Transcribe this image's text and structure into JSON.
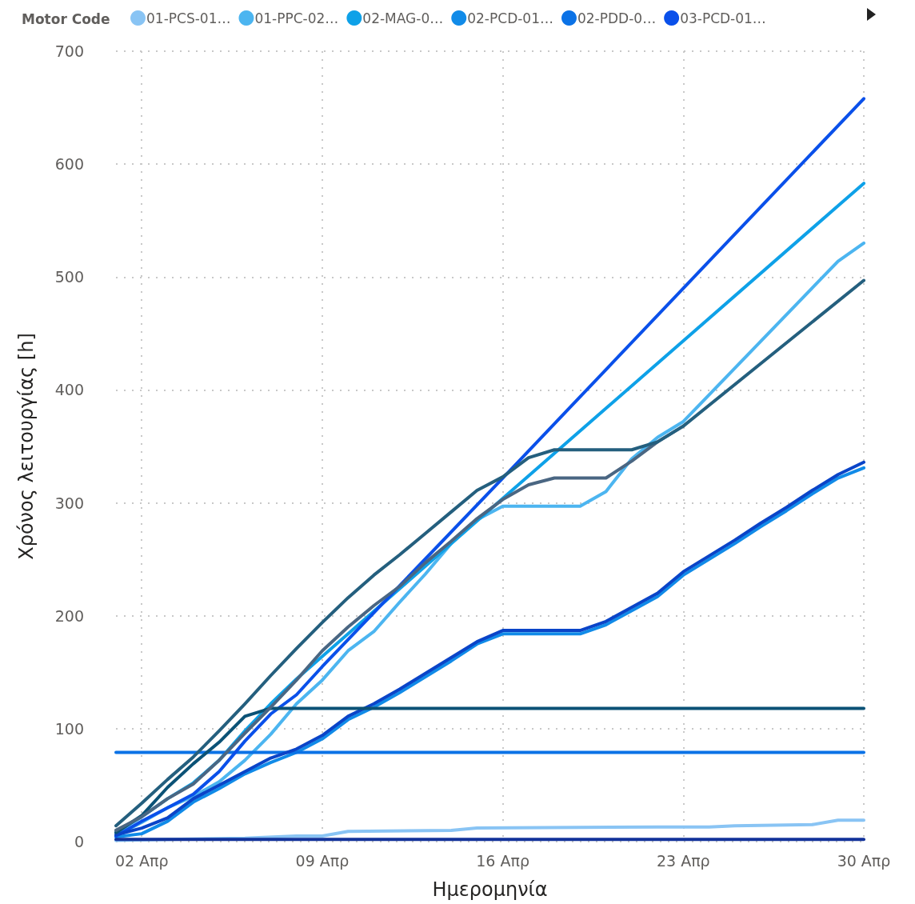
{
  "chart_data": {
    "type": "line",
    "legend_title": "Motor Code",
    "xlabel": "Ημερομηνία",
    "ylabel": "Χρόνος λειτουργίας [h]",
    "xlim": [
      "--04-01",
      "--04-30"
    ],
    "xticks": [
      {
        "value": "--04-02",
        "label": "02 Απρ"
      },
      {
        "value": "--04-09",
        "label": "09 Απρ"
      },
      {
        "value": "--04-16",
        "label": "16 Απρ"
      },
      {
        "value": "--04-23",
        "label": "23 Απρ"
      },
      {
        "value": "--04-30",
        "label": "30 Απρ"
      }
    ],
    "ylim": [
      0,
      700
    ],
    "yticks": [
      0,
      100,
      200,
      300,
      400,
      500,
      600,
      700
    ],
    "grid": true,
    "legend": "top",
    "marker": "none",
    "line_style": "solid",
    "series": [
      {
        "name": "01-PCS-01…",
        "color": "#89c4f4",
        "x": [
          "--04-01",
          "--04-03",
          "--04-06",
          "--04-08",
          "--04-09",
          "--04-10",
          "--04-14",
          "--04-15",
          "--04-22",
          "--04-24",
          "--04-25",
          "--04-28",
          "--04-29",
          "--04-30"
        ],
        "values": [
          1,
          2,
          3,
          5,
          5,
          9,
          10,
          12,
          13,
          13,
          14,
          15,
          19,
          19
        ]
      },
      {
        "name": "01-PPC-02…",
        "color": "#4cb5f0",
        "x": [
          "--04-01",
          "--04-02",
          "--04-03",
          "--04-04",
          "--04-05",
          "--04-06",
          "--04-07",
          "--04-08",
          "--04-09",
          "--04-10",
          "--04-11",
          "--04-12",
          "--04-13",
          "--04-14",
          "--04-15",
          "--04-16",
          "--04-19",
          "--04-20",
          "--04-21",
          "--04-22",
          "--04-23",
          "--04-29",
          "--04-30"
        ],
        "values": [
          5,
          17,
          30,
          40,
          53,
          72,
          95,
          122,
          143,
          169,
          186,
          212,
          237,
          264,
          285,
          297,
          297,
          310,
          339,
          358,
          372,
          514,
          530
        ]
      },
      {
        "name": "02-MAG-0…",
        "color": "#0ea1e8",
        "x": [
          "--04-01",
          "--04-02",
          "--04-03",
          "--04-04",
          "--04-05",
          "--04-06",
          "--04-07",
          "--04-08",
          "--04-09",
          "--04-16",
          "--04-30"
        ],
        "values": [
          8,
          22,
          38,
          52,
          72,
          98,
          122,
          144,
          164,
          304,
          583
        ]
      },
      {
        "name": "02-PCD-01…",
        "color": "#118be8",
        "x": [
          "--04-01",
          "--04-02",
          "--04-03",
          "--04-04",
          "--04-05",
          "--04-06",
          "--04-07",
          "--04-08",
          "--04-09",
          "--04-10",
          "--04-11",
          "--04-12",
          "--04-13",
          "--04-14",
          "--04-15",
          "--04-16",
          "--04-19",
          "--04-20",
          "--04-22",
          "--04-23",
          "--04-24",
          "--04-25",
          "--04-26",
          "--04-27",
          "--04-28",
          "--04-29",
          "--04-30"
        ],
        "values": [
          4,
          7,
          18,
          35,
          47,
          60,
          70,
          79,
          91,
          108,
          119,
          132,
          146,
          160,
          175,
          184,
          184,
          192,
          217,
          236,
          250,
          264,
          279,
          293,
          308,
          322,
          331
        ]
      },
      {
        "name": "02-PDD-0…",
        "color": "#0b72e6",
        "x": [
          "--04-01",
          "--04-30"
        ],
        "values": [
          79,
          79
        ]
      },
      {
        "name": "03-PCD-01…",
        "color": "#0a50ea",
        "x": [
          "--04-01",
          "--04-02",
          "--04-03",
          "--04-04",
          "--04-05",
          "--04-06",
          "--04-07",
          "--04-08",
          "--04-09",
          "--04-16",
          "--04-30"
        ],
        "values": [
          5,
          18,
          30,
          42,
          62,
          89,
          113,
          130,
          155,
          322,
          658
        ]
      },
      {
        "color": "#0a44c8",
        "x": [
          "--04-01",
          "--04-02",
          "--04-03",
          "--04-04",
          "--04-05",
          "--04-06",
          "--04-07",
          "--04-08",
          "--04-09",
          "--04-10",
          "--04-11",
          "--04-12",
          "--04-13",
          "--04-14",
          "--04-15",
          "--04-16",
          "--04-19",
          "--04-20",
          "--04-22",
          "--04-23",
          "--04-24",
          "--04-25",
          "--04-26",
          "--04-27",
          "--04-28",
          "--04-29",
          "--04-30"
        ],
        "values": [
          6,
          12,
          21,
          38,
          50,
          62,
          74,
          82,
          94,
          111,
          122,
          135,
          149,
          163,
          177,
          187,
          187,
          195,
          220,
          239,
          253,
          267,
          282,
          296,
          311,
          325,
          336
        ]
      },
      {
        "color": "#12329a",
        "x": [
          "--04-01",
          "--04-30"
        ],
        "values": [
          2,
          2
        ]
      },
      {
        "color": "#0b5276",
        "x": [
          "--04-01",
          "--04-02",
          "--04-03",
          "--04-04",
          "--04-05",
          "--04-06",
          "--04-07",
          "--04-30"
        ],
        "values": [
          8,
          23,
          48,
          69,
          88,
          111,
          118,
          118
        ]
      },
      {
        "color": "#4a6682",
        "x": [
          "--04-01",
          "--04-02",
          "--04-03",
          "--04-04",
          "--04-05",
          "--04-06",
          "--04-07",
          "--04-08",
          "--04-09",
          "--04-10",
          "--04-11",
          "--04-12",
          "--04-13",
          "--04-14",
          "--04-15",
          "--04-16",
          "--04-17",
          "--04-18",
          "--04-20",
          "--04-21",
          "--04-22",
          "--04-23"
        ],
        "values": [
          10,
          22,
          38,
          51,
          72,
          96,
          119,
          143,
          169,
          190,
          209,
          226,
          247,
          266,
          286,
          303,
          316,
          322,
          322,
          337,
          354,
          368
        ]
      },
      {
        "color": "#245f7e",
        "x": [
          "--04-01",
          "--04-02",
          "--04-03",
          "--04-04",
          "--04-05",
          "--04-06",
          "--04-07",
          "--04-08",
          "--04-09",
          "--04-10",
          "--04-11",
          "--04-12",
          "--04-13",
          "--04-14",
          "--04-15",
          "--04-16",
          "--04-17",
          "--04-18",
          "--04-21",
          "--04-22",
          "--04-23",
          "--04-30"
        ],
        "values": [
          14,
          34,
          55,
          75,
          98,
          122,
          147,
          171,
          194,
          216,
          236,
          254,
          273,
          292,
          311,
          323,
          340,
          347,
          347,
          354,
          368,
          497
        ]
      }
    ]
  }
}
